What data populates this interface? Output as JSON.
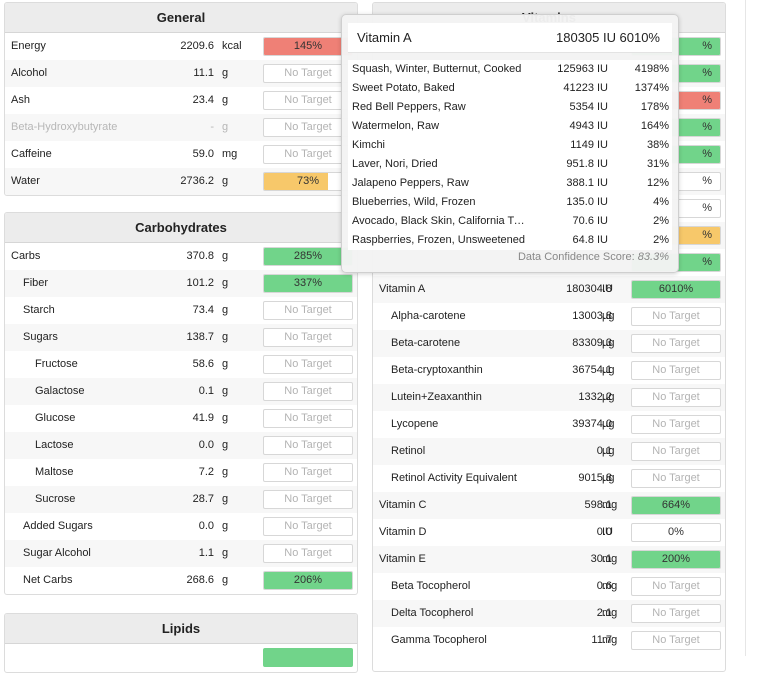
{
  "colors": {
    "red": "#ef8076",
    "green": "#71d48a",
    "orange": "#f7c86a"
  },
  "no_target": "No Target",
  "general": {
    "title": "General",
    "rows": [
      {
        "name": "Energy",
        "value": "2209.6",
        "unit": "kcal",
        "pct": "145%",
        "level": 1.0,
        "color": "#ef8076"
      },
      {
        "name": "Alcohol",
        "value": "11.1",
        "unit": "g"
      },
      {
        "name": "Ash",
        "value": "23.4",
        "unit": "g"
      },
      {
        "name": "Beta-Hydroxybutyrate",
        "value": "-",
        "unit": "g",
        "muted": true
      },
      {
        "name": "Caffeine",
        "value": "59.0",
        "unit": "mg"
      },
      {
        "name": "Water",
        "value": "2736.2",
        "unit": "g",
        "pct": "73%",
        "level": 0.73,
        "color": "#f7c86a"
      }
    ]
  },
  "carbs": {
    "title": "Carbohydrates",
    "rows": [
      {
        "name": "Carbs",
        "value": "370.8",
        "unit": "g",
        "pct": "285%",
        "level": 1.0,
        "color": "#71d48a"
      },
      {
        "name": "Fiber",
        "value": "101.2",
        "unit": "g",
        "pct": "337%",
        "level": 1.0,
        "color": "#71d48a",
        "indent": 1
      },
      {
        "name": "Starch",
        "value": "73.4",
        "unit": "g",
        "indent": 1
      },
      {
        "name": "Sugars",
        "value": "138.7",
        "unit": "g",
        "indent": 1
      },
      {
        "name": "Fructose",
        "value": "58.6",
        "unit": "g",
        "indent": 2
      },
      {
        "name": "Galactose",
        "value": "0.1",
        "unit": "g",
        "indent": 2
      },
      {
        "name": "Glucose",
        "value": "41.9",
        "unit": "g",
        "indent": 2
      },
      {
        "name": "Lactose",
        "value": "0.0",
        "unit": "g",
        "indent": 2
      },
      {
        "name": "Maltose",
        "value": "7.2",
        "unit": "g",
        "indent": 2
      },
      {
        "name": "Sucrose",
        "value": "28.7",
        "unit": "g",
        "indent": 2
      },
      {
        "name": "Added Sugars",
        "value": "0.0",
        "unit": "g",
        "indent": 1
      },
      {
        "name": "Sugar Alcohol",
        "value": "1.1",
        "unit": "g",
        "indent": 1
      },
      {
        "name": "Net Carbs",
        "value": "268.6",
        "unit": "g",
        "pct": "206%",
        "level": 1.0,
        "color": "#71d48a",
        "indent": 1
      }
    ]
  },
  "lipids": {
    "title": "Lipids"
  },
  "vitamins": {
    "title": "Vitamins",
    "partial_bars": [
      {
        "pct": "%",
        "level": 1.0,
        "color": "#71d48a"
      },
      {
        "pct": "%",
        "level": 1.0,
        "color": "#71d48a"
      },
      {
        "pct": "%",
        "level": 1.0,
        "color": "#ef8076"
      },
      {
        "pct": "%",
        "level": 1.0,
        "color": "#71d48a"
      },
      {
        "pct": "%",
        "level": 1.0,
        "color": "#71d48a"
      },
      {
        "pct": "%",
        "level": 0.0,
        "color": "#71d48a"
      },
      {
        "pct": "%",
        "level": 0.0,
        "color": "#71d48a"
      },
      {
        "pct": "%",
        "level": 1.0,
        "color": "#f7c86a"
      },
      {
        "pct": "%",
        "level": 1.0,
        "color": "#71d48a"
      }
    ],
    "rows": [
      {
        "name": "Vitamin A",
        "value": "180304.8",
        "unit": "IU",
        "pct": "6010%",
        "level": 1.0,
        "color": "#71d48a"
      },
      {
        "name": "Alpha-carotene",
        "value": "13003.8",
        "unit": "µg",
        "indent": 1
      },
      {
        "name": "Beta-carotene",
        "value": "83309.3",
        "unit": "µg",
        "indent": 1
      },
      {
        "name": "Beta-cryptoxanthin",
        "value": "36754.1",
        "unit": "µg",
        "indent": 1
      },
      {
        "name": "Lutein+Zeaxanthin",
        "value": "1332.2",
        "unit": "µg",
        "indent": 1
      },
      {
        "name": "Lycopene",
        "value": "39374.0",
        "unit": "µg",
        "indent": 1
      },
      {
        "name": "Retinol",
        "value": "0.1",
        "unit": "µg",
        "indent": 1
      },
      {
        "name": "Retinol Activity Equivalent",
        "value": "9015.8",
        "unit": "µg",
        "indent": 1
      },
      {
        "name": "Vitamin C",
        "value": "598.1",
        "unit": "mg",
        "pct": "664%",
        "level": 1.0,
        "color": "#71d48a"
      },
      {
        "name": "Vitamin D",
        "value": "0.0",
        "unit": "IU",
        "pct": "0%",
        "level": 0.0,
        "color": "#71d48a"
      },
      {
        "name": "Vitamin E",
        "value": "30.1",
        "unit": "mg",
        "pct": "200%",
        "level": 1.0,
        "color": "#71d48a"
      },
      {
        "name": "Beta Tocopherol",
        "value": "0.6",
        "unit": "mg",
        "indent": 1
      },
      {
        "name": "Delta Tocopherol",
        "value": "2.1",
        "unit": "mg",
        "indent": 1
      },
      {
        "name": "Gamma Tocopherol",
        "value": "11.7",
        "unit": "mg",
        "indent": 1
      }
    ]
  },
  "tooltip": {
    "nutrient": "Vitamin A",
    "amount": "180305 IU",
    "pct": "6010%",
    "rows": [
      {
        "food": "Squash, Winter, Butternut, Cooked",
        "amount": "125963 IU",
        "pct": "4198%"
      },
      {
        "food": "Sweet Potato, Baked",
        "amount": "41223 IU",
        "pct": "1374%"
      },
      {
        "food": "Red Bell Peppers, Raw",
        "amount": "5354 IU",
        "pct": "178%"
      },
      {
        "food": "Watermelon, Raw",
        "amount": "4943 IU",
        "pct": "164%"
      },
      {
        "food": "Kimchi",
        "amount": "1149 IU",
        "pct": "38%"
      },
      {
        "food": "Laver, Nori, Dried",
        "amount": "951.8 IU",
        "pct": "31%"
      },
      {
        "food": "Jalapeno Peppers, Raw",
        "amount": "388.1 IU",
        "pct": "12%"
      },
      {
        "food": "Blueberries, Wild, Frozen",
        "amount": "135.0 IU",
        "pct": "4%"
      },
      {
        "food": "Avocado, Black Skin, California Type",
        "amount": "70.6 IU",
        "pct": "2%"
      },
      {
        "food": "Raspberries, Frozen, Unsweetened",
        "amount": "64.8 IU",
        "pct": "2%"
      }
    ],
    "confidence_label": "Data Confidence Score:",
    "confidence_value": "83.3%"
  }
}
